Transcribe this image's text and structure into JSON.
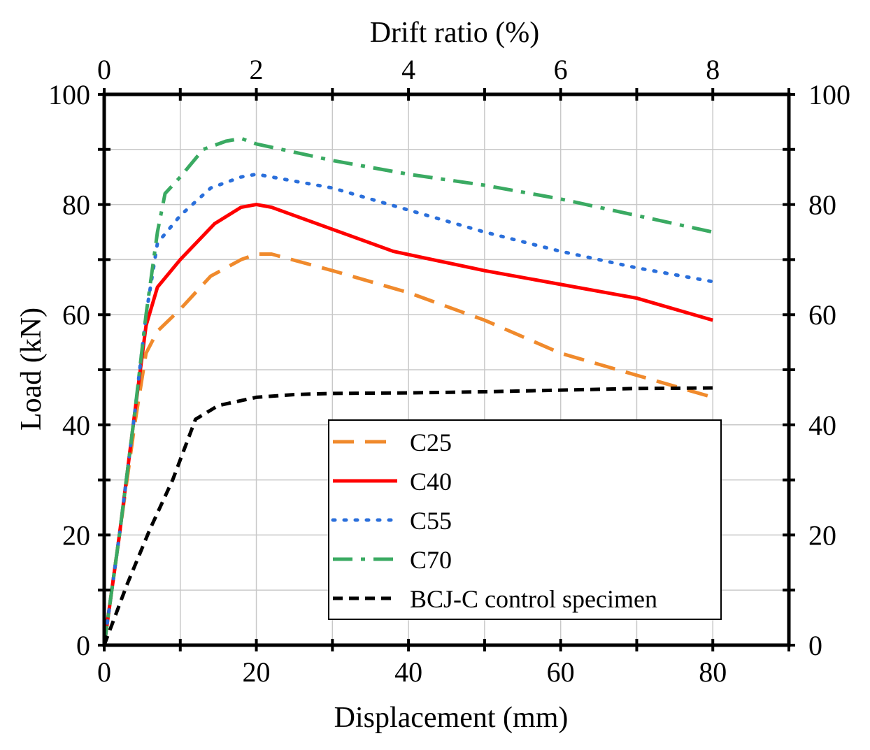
{
  "chart_data": {
    "type": "line",
    "title": "",
    "xlabel": "Displacement (mm)",
    "ylabel": "Load (kN)",
    "x2label": "Drift ratio (%)",
    "xlim": [
      0,
      90
    ],
    "ylim": [
      0,
      100
    ],
    "x2lim": [
      0,
      9
    ],
    "x_ticks": [
      "0",
      "20",
      "40",
      "60",
      "80"
    ],
    "x_tick_values": [
      0,
      20,
      40,
      60,
      80
    ],
    "x2_ticks": [
      "0",
      "2",
      "4",
      "6",
      "8"
    ],
    "x2_tick_values": [
      0,
      2,
      4,
      6,
      8
    ],
    "y_ticks": [
      "0",
      "20",
      "40",
      "60",
      "80",
      "100"
    ],
    "y_tick_values": [
      0,
      20,
      40,
      60,
      80,
      100
    ],
    "grid": true,
    "legend_position": "lower-right",
    "series": [
      {
        "name": "C25",
        "color": "#f08a2c",
        "style": "dashed",
        "x": [
          0,
          2,
          4,
          5.5,
          7,
          10,
          14,
          18,
          20,
          22,
          30,
          40,
          50,
          60,
          70,
          80
        ],
        "y": [
          0,
          20,
          40,
          53,
          57,
          61,
          67,
          70,
          71,
          71,
          68,
          64,
          59,
          53,
          49,
          45
        ]
      },
      {
        "name": "C40",
        "color": "#ff0000",
        "style": "solid",
        "x": [
          0,
          2,
          4,
          5.5,
          7,
          10,
          14.5,
          18,
          20,
          22,
          30,
          38,
          50,
          60,
          70,
          80
        ],
        "y": [
          0,
          20,
          42,
          58,
          65,
          70,
          76.5,
          79.5,
          80,
          79.5,
          75.5,
          71.5,
          68,
          65.5,
          63,
          59
        ]
      },
      {
        "name": "C55",
        "color": "#2a6fdb",
        "style": "dotted",
        "x": [
          0,
          2,
          4,
          5.5,
          7,
          10,
          14,
          18,
          20,
          30,
          40,
          50,
          60,
          70,
          80
        ],
        "y": [
          0,
          20,
          42,
          60,
          73,
          78,
          83,
          85,
          85.5,
          83,
          79,
          75,
          71.5,
          68.5,
          66
        ]
      },
      {
        "name": "C70",
        "color": "#3aaa62",
        "style": "dashdot",
        "x": [
          0,
          2,
          4,
          5.5,
          7,
          8,
          10,
          13,
          16,
          18,
          20,
          30,
          40,
          50,
          60,
          70,
          80
        ],
        "y": [
          0,
          20,
          42,
          60,
          75,
          82,
          85,
          90,
          91.5,
          92,
          91,
          88,
          85.5,
          83.5,
          81,
          78,
          75
        ]
      },
      {
        "name": "BCJ-C control specimen",
        "color": "#000000",
        "style": "shortdash",
        "x": [
          0,
          3,
          6,
          9,
          12,
          15,
          20,
          25,
          30,
          40,
          50,
          60,
          70,
          80
        ],
        "y": [
          0,
          11,
          21,
          30,
          41,
          43.5,
          45,
          45.5,
          45.7,
          45.8,
          46,
          46.3,
          46.6,
          46.7
        ]
      }
    ]
  }
}
